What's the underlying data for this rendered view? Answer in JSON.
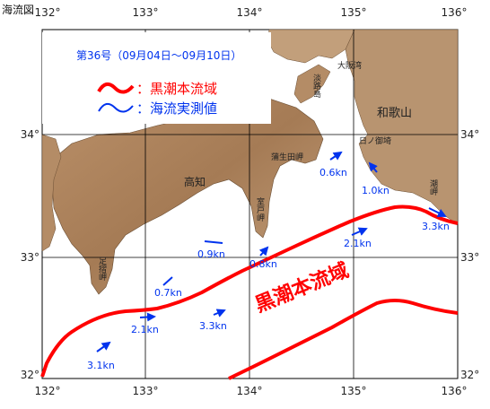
{
  "page_title": "海流図",
  "legend": {
    "period": "第36号（09月04日〜09月10日）",
    "kuroshio_label": "：黒潮本流域",
    "measured_label": "：海流実測値",
    "kuroshio_color": "#ff0000",
    "measured_color": "#0033ee"
  },
  "map_label": "黒潮本流域",
  "longitude_labels_top": [
    "132°",
    "133°",
    "134°",
    "135°",
    "136°"
  ],
  "longitude_labels_bottom": [
    "132°",
    "133°",
    "134°",
    "135°",
    "136°"
  ],
  "latitude_labels_left": [
    "34°",
    "33°",
    "32°"
  ],
  "latitude_labels_right": [
    "34°",
    "33°",
    "32°"
  ],
  "places": {
    "kochi": "高知",
    "wakayama": "和歌山",
    "awaji": "淡路島",
    "osaka_bay": "大阪湾",
    "kamogawa": "蒲生田岬",
    "kiisuido": "日ノ御埼",
    "muroto": "室戸岬",
    "shionomisaki": "潮岬",
    "ashizuri": "足摺岬"
  },
  "current_speeds": [
    "0.6kn",
    "1.0kn",
    "3.3kn",
    "2.1kn",
    "0.8kn",
    "0.9kn",
    "0.7kn",
    "2.1kn",
    "3.3kn",
    "3.1kn"
  ]
}
